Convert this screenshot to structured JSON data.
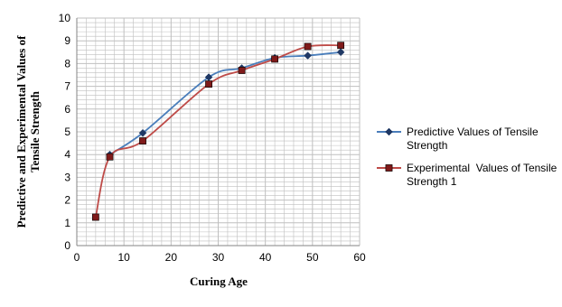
{
  "colors": {
    "predictive": "#4a7ebb",
    "predictive_marker": "#1f3864",
    "experimental": "#be4b48",
    "experimental_marker": "#7f1a1a",
    "grid": "#bfbfbf",
    "axis": "#868686"
  },
  "chart_data": {
    "type": "line",
    "title": "",
    "xlabel": "Curing Age",
    "ylabel": "Predictive and Experimental Values of Tensile Strength",
    "xlim": [
      0,
      60
    ],
    "ylim": [
      0,
      10
    ],
    "x_ticks": [
      "0",
      "10",
      "20",
      "30",
      "40",
      "50",
      "60"
    ],
    "y_ticks": [
      "0",
      "1",
      "2",
      "3",
      "4",
      "5",
      "6",
      "7",
      "8",
      "9",
      "10"
    ],
    "grid": true,
    "legend_position": "right",
    "smooth": true,
    "series": [
      {
        "name": "Predictive Values of Tensile Strength",
        "marker": "diamond",
        "x": [
          7,
          14,
          28,
          35,
          42,
          49,
          56
        ],
        "y": [
          4.0,
          4.95,
          7.4,
          7.8,
          8.25,
          8.35,
          8.5
        ]
      },
      {
        "name": "Experimental  Values of Tensile Strength 1",
        "marker": "square",
        "x": [
          4,
          7,
          14,
          28,
          35,
          42,
          49,
          56
        ],
        "y": [
          1.25,
          3.9,
          4.6,
          7.1,
          7.7,
          8.2,
          8.75,
          8.8
        ]
      }
    ]
  }
}
